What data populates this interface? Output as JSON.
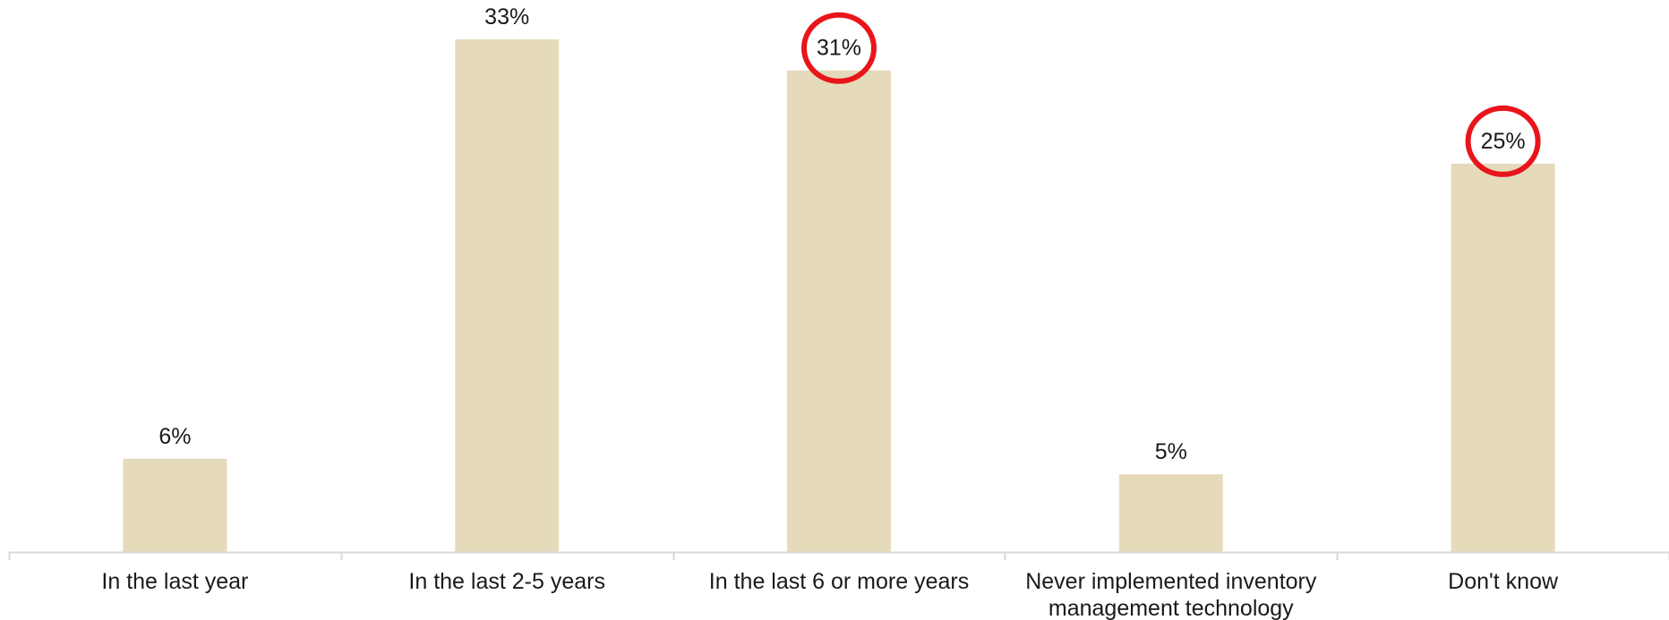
{
  "chart_data": {
    "type": "bar",
    "categories": [
      "In the last year",
      "In the last 2-5 years",
      "In the last 6 or more years",
      "Never implemented inventory management technology",
      "Don't know"
    ],
    "category_lines": [
      [
        "In the last year"
      ],
      [
        "In the last 2-5 years"
      ],
      [
        "In the last 6 or more years"
      ],
      [
        "Never implemented inventory",
        "management technology"
      ],
      [
        "Don't know"
      ]
    ],
    "values": [
      6,
      33,
      31,
      5,
      25
    ],
    "value_labels": [
      "6%",
      "33%",
      "31%",
      "5%",
      "25%"
    ],
    "highlighted": [
      false,
      false,
      true,
      false,
      true
    ],
    "ylim": [
      0,
      33
    ],
    "grid": false,
    "colors": {
      "bar": "#e5dbba",
      "axis": "#d9d9d9",
      "highlight": "#e8151b"
    }
  }
}
